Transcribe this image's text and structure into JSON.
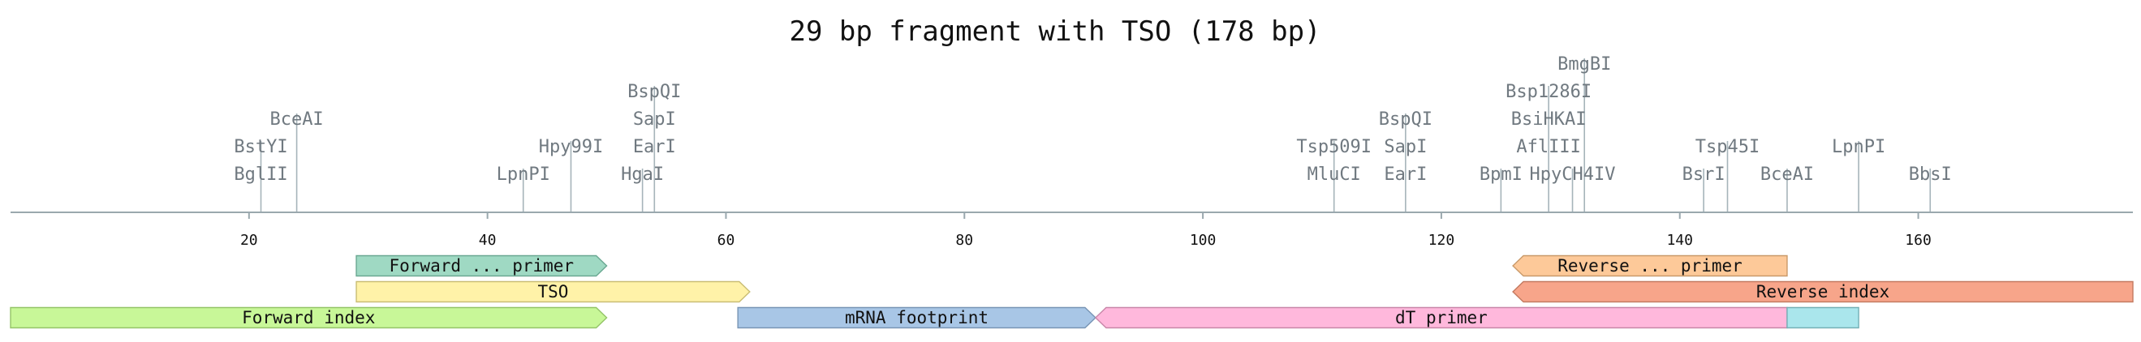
{
  "title": "29 bp fragment with TSO (178 bp)",
  "sequence_length": 178,
  "axis": {
    "ticks": [
      "20",
      "40",
      "60",
      "80",
      "100",
      "120",
      "140",
      "160"
    ]
  },
  "sites": [
    {
      "name": "BglII",
      "position": 21,
      "level": 0
    },
    {
      "name": "BstYI",
      "position": 21,
      "level": 1
    },
    {
      "name": "BceAI",
      "position": 24,
      "level": 2
    },
    {
      "name": "LpnPI",
      "position": 43,
      "level": 0
    },
    {
      "name": "Hpy99I",
      "position": 47,
      "level": 1
    },
    {
      "name": "HgaI",
      "position": 53,
      "level": 0
    },
    {
      "name": "EarI",
      "position": 54,
      "level": 1
    },
    {
      "name": "SapI",
      "position": 54,
      "level": 2
    },
    {
      "name": "BspQI",
      "position": 54,
      "level": 3
    },
    {
      "name": "MluCI",
      "position": 111,
      "level": 0
    },
    {
      "name": "Tsp509I",
      "position": 111,
      "level": 1
    },
    {
      "name": "EarI",
      "position": 117,
      "level": 0
    },
    {
      "name": "SapI",
      "position": 117,
      "level": 1
    },
    {
      "name": "BspQI",
      "position": 117,
      "level": 2
    },
    {
      "name": "BpmI",
      "position": 125,
      "level": 0
    },
    {
      "name": "AflIII",
      "position": 129,
      "level": 1
    },
    {
      "name": "BsiHKAI",
      "position": 129,
      "level": 2
    },
    {
      "name": "Bsp1286I",
      "position": 129,
      "level": 3
    },
    {
      "name": "BmgBI",
      "position": 132,
      "level": 4
    },
    {
      "name": "HpyCH4IV",
      "position": 131,
      "level": 0
    },
    {
      "name": "BsrI",
      "position": 142,
      "level": 0
    },
    {
      "name": "Tsp45I",
      "position": 144,
      "level": 1
    },
    {
      "name": "BceAI",
      "position": 149,
      "level": 0
    },
    {
      "name": "LpnPI",
      "position": 155,
      "level": 1
    },
    {
      "name": "BbsI",
      "position": 161,
      "level": 0
    }
  ],
  "features": [
    {
      "label": "Forward ... primer",
      "start": 29,
      "end": 50,
      "lane": 0,
      "color": "#9fd9c3",
      "stroke": "#6aa892",
      "direction": "right"
    },
    {
      "label": "Reverse ... primer",
      "start": 126,
      "end": 149,
      "lane": 0,
      "color": "#fdc999",
      "stroke": "#c99a6a",
      "direction": "left"
    },
    {
      "label": "TSO",
      "start": 29,
      "end": 62,
      "lane": 1,
      "color": "#fff2a8",
      "stroke": "#c9bd74",
      "direction": "right"
    },
    {
      "label": "Reverse index",
      "start": 126,
      "end": 178,
      "lane": 1,
      "color": "#f7a58a",
      "stroke": "#c47a60",
      "direction": "left"
    },
    {
      "label": "Forward index",
      "start": 0,
      "end": 50,
      "lane": 2,
      "color": "#c8f798",
      "stroke": "#94c468",
      "direction": "right"
    },
    {
      "label": "mRNA footprint",
      "start": 61,
      "end": 91,
      "lane": 2,
      "color": "#a8c6e6",
      "stroke": "#7895b5",
      "direction": "right"
    },
    {
      "label": "dT primer",
      "start": 91,
      "end": 149,
      "lane": 2,
      "color": "#ffb8dc",
      "stroke": "#c886a8",
      "direction": "left"
    },
    {
      "label": "",
      "start": 149,
      "end": 155,
      "lane": 2,
      "color": "#aae6ec",
      "stroke": "#74b0b6",
      "direction": "none"
    }
  ],
  "colors": {
    "axis": "#9aa8ae",
    "site_line": "#a6b4ba",
    "site_text": "#707980"
  }
}
